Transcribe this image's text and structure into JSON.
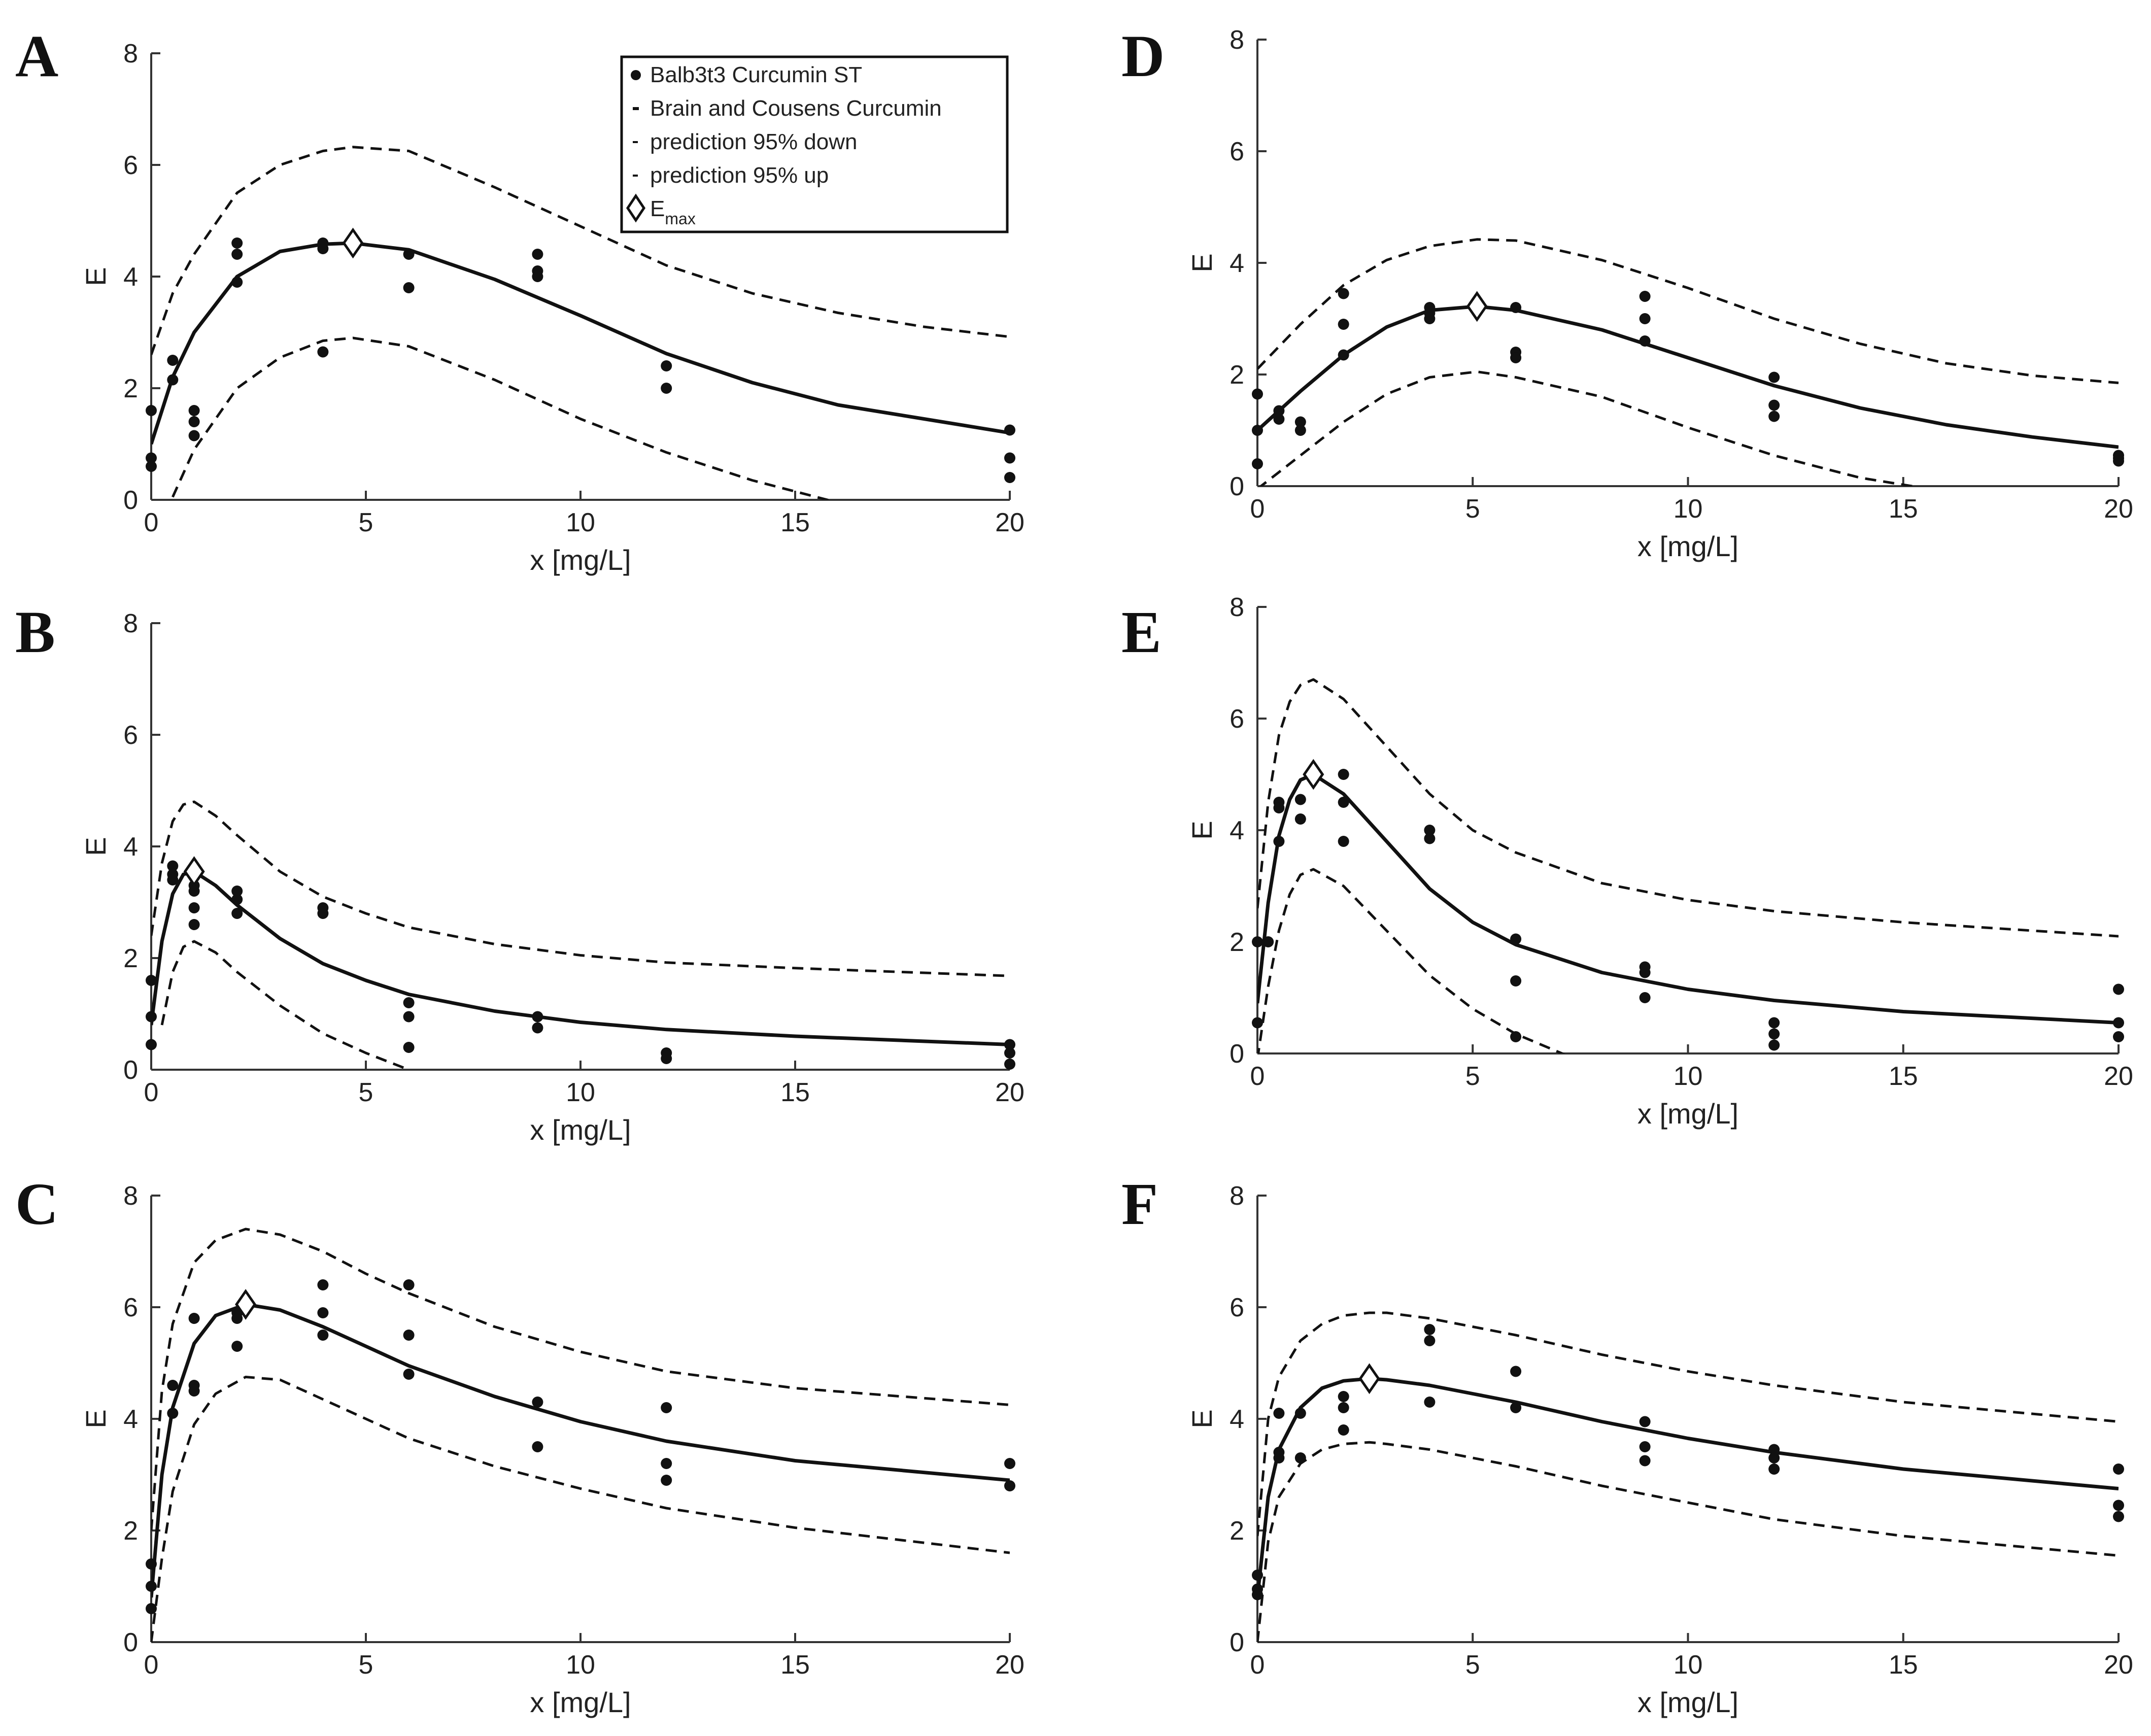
{
  "figure": {
    "legend": {
      "entries": [
        {
          "label": "Balb3t3 Curcumin ST",
          "marker": "dot"
        },
        {
          "label": "Brain and Cousens Curcumin",
          "marker": "solid-line"
        },
        {
          "label": "prediction 95% down",
          "marker": "dashed-line"
        },
        {
          "label": "prediction 95% up",
          "marker": "dashed-line"
        },
        {
          "label": "E",
          "sub": "max",
          "marker": "diamond"
        }
      ]
    },
    "colors": {
      "ink": "#111111",
      "axis": "#333333"
    }
  },
  "chart_data": [
    {
      "id": "A",
      "type": "line",
      "title": "A",
      "xlabel": "x [mg/L]",
      "ylabel": "E",
      "xlim": [
        0,
        20
      ],
      "ylim": [
        0,
        8
      ],
      "xticks": [
        0,
        5,
        10,
        15,
        20
      ],
      "yticks": [
        0,
        2,
        4,
        6,
        8
      ],
      "x": [
        0,
        0.5,
        1,
        2,
        3,
        4,
        4.7,
        6,
        8,
        10,
        12,
        14,
        16,
        18,
        20
      ],
      "series": [
        {
          "name": "Brain and Cousens Curcumin",
          "style": "solid",
          "values": [
            1.0,
            2.2,
            3.0,
            4.0,
            4.45,
            4.58,
            4.6,
            4.48,
            3.95,
            3.3,
            2.62,
            2.1,
            1.7,
            1.45,
            1.2
          ]
        },
        {
          "name": "prediction 95% up",
          "style": "dashed",
          "values": [
            2.6,
            3.7,
            4.4,
            5.5,
            6.0,
            6.25,
            6.32,
            6.25,
            5.6,
            4.9,
            4.2,
            3.7,
            3.35,
            3.1,
            2.92
          ]
        },
        {
          "name": "prediction 95% down",
          "style": "dashed",
          "values": [
            null,
            0.05,
            0.9,
            2.0,
            2.55,
            2.85,
            2.9,
            2.75,
            2.15,
            1.45,
            0.85,
            0.35,
            -0.05,
            null,
            null
          ]
        }
      ],
      "points": [
        [
          0,
          1.6
        ],
        [
          0,
          0.75
        ],
        [
          0,
          0.6
        ],
        [
          0.5,
          2.5
        ],
        [
          0.5,
          2.15
        ],
        [
          1,
          1.6
        ],
        [
          1,
          1.4
        ],
        [
          1,
          1.15
        ],
        [
          2,
          4.6
        ],
        [
          2,
          4.4
        ],
        [
          2,
          3.9
        ],
        [
          4,
          4.6
        ],
        [
          4,
          4.5
        ],
        [
          4,
          2.65
        ],
        [
          6,
          4.4
        ],
        [
          6,
          3.8
        ],
        [
          9,
          4.4
        ],
        [
          9,
          4.1
        ],
        [
          9,
          4.0
        ],
        [
          12,
          2.4
        ],
        [
          12,
          2.0
        ],
        [
          20,
          1.25
        ],
        [
          20,
          0.75
        ],
        [
          20,
          0.4
        ]
      ],
      "emax": [
        4.7,
        4.6
      ],
      "show_legend": true
    },
    {
      "id": "B",
      "type": "line",
      "title": "B",
      "xlabel": "x [mg/L]",
      "ylabel": "E",
      "xlim": [
        0,
        20
      ],
      "ylim": [
        0,
        8
      ],
      "xticks": [
        0,
        5,
        10,
        15,
        20
      ],
      "yticks": [
        0,
        2,
        4,
        6,
        8
      ],
      "x": [
        0,
        0.25,
        0.5,
        0.75,
        1,
        1.5,
        2,
        3,
        4,
        5,
        6,
        8,
        10,
        12,
        15,
        20
      ],
      "series": [
        {
          "name": "Brain and Cousens Curcumin",
          "style": "solid",
          "values": [
            0.8,
            2.3,
            3.15,
            3.5,
            3.55,
            3.3,
            2.95,
            2.35,
            1.9,
            1.6,
            1.35,
            1.05,
            0.85,
            0.72,
            0.6,
            0.45
          ]
        },
        {
          "name": "prediction 95% up",
          "style": "dashed",
          "values": [
            2.4,
            3.7,
            4.45,
            4.75,
            4.8,
            4.55,
            4.2,
            3.55,
            3.1,
            2.8,
            2.55,
            2.25,
            2.05,
            1.92,
            1.82,
            1.68
          ]
        },
        {
          "name": "prediction 95% down",
          "style": "dashed",
          "values": [
            null,
            0.8,
            1.75,
            2.2,
            2.3,
            2.1,
            1.75,
            1.15,
            0.65,
            0.3,
            0.0,
            null,
            null,
            null,
            null,
            null
          ]
        }
      ],
      "points": [
        [
          0,
          1.6
        ],
        [
          0,
          0.95
        ],
        [
          0,
          0.45
        ],
        [
          0.5,
          3.65
        ],
        [
          0.5,
          3.5
        ],
        [
          0.5,
          3.4
        ],
        [
          1,
          3.3
        ],
        [
          1,
          3.2
        ],
        [
          1,
          2.9
        ],
        [
          1,
          2.6
        ],
        [
          2,
          3.2
        ],
        [
          2,
          3.05
        ],
        [
          2,
          2.8
        ],
        [
          4,
          2.9
        ],
        [
          4,
          2.8
        ],
        [
          6,
          1.2
        ],
        [
          6,
          0.95
        ],
        [
          6,
          0.4
        ],
        [
          9,
          0.95
        ],
        [
          9,
          0.75
        ],
        [
          12,
          0.3
        ],
        [
          12,
          0.2
        ],
        [
          20,
          0.45
        ],
        [
          20,
          0.3
        ],
        [
          20,
          0.1
        ]
      ],
      "emax": [
        1.0,
        3.55
      ],
      "show_legend": false
    },
    {
      "id": "C",
      "type": "line",
      "title": "C",
      "xlabel": "x [mg/L]",
      "ylabel": "E",
      "xlim": [
        0,
        20
      ],
      "ylim": [
        0,
        8
      ],
      "xticks": [
        0,
        5,
        10,
        15,
        20
      ],
      "yticks": [
        0,
        2,
        4,
        6,
        8
      ],
      "x": [
        0,
        0.25,
        0.5,
        1,
        1.5,
        2.2,
        3,
        4,
        5,
        6,
        8,
        10,
        12,
        15,
        20
      ],
      "series": [
        {
          "name": "Brain and Cousens Curcumin",
          "style": "solid",
          "values": [
            0.8,
            3.0,
            4.2,
            5.35,
            5.85,
            6.05,
            5.95,
            5.65,
            5.3,
            4.95,
            4.4,
            3.95,
            3.6,
            3.25,
            2.9
          ]
        },
        {
          "name": "prediction 95% up",
          "style": "dashed",
          "values": [
            2.0,
            4.5,
            5.7,
            6.8,
            7.2,
            7.4,
            7.3,
            7.0,
            6.6,
            6.25,
            5.65,
            5.2,
            4.85,
            4.55,
            4.25
          ]
        },
        {
          "name": "prediction 95% down",
          "style": "dashed",
          "values": [
            0.0,
            1.5,
            2.7,
            3.9,
            4.45,
            4.75,
            4.7,
            4.35,
            4.0,
            3.65,
            3.15,
            2.75,
            2.4,
            2.05,
            1.6
          ]
        }
      ],
      "points": [
        [
          0,
          1.4
        ],
        [
          0,
          1.0
        ],
        [
          0,
          0.6
        ],
        [
          0.5,
          4.6
        ],
        [
          0.5,
          4.1
        ],
        [
          1,
          5.8
        ],
        [
          1,
          4.6
        ],
        [
          1,
          4.5
        ],
        [
          2,
          5.9
        ],
        [
          2,
          5.8
        ],
        [
          2,
          5.3
        ],
        [
          4,
          6.4
        ],
        [
          4,
          5.9
        ],
        [
          4,
          5.5
        ],
        [
          6,
          6.4
        ],
        [
          6,
          5.5
        ],
        [
          6,
          4.8
        ],
        [
          9,
          4.3
        ],
        [
          9,
          3.5
        ],
        [
          12,
          4.2
        ],
        [
          12,
          3.2
        ],
        [
          12,
          2.9
        ],
        [
          20,
          3.2
        ],
        [
          20,
          2.8
        ]
      ],
      "emax": [
        2.2,
        6.05
      ],
      "show_legend": false
    },
    {
      "id": "D",
      "type": "line",
      "title": "D",
      "xlabel": "x [mg/L]",
      "ylabel": "E",
      "xlim": [
        0,
        20
      ],
      "ylim": [
        0,
        8
      ],
      "xticks": [
        0,
        5,
        10,
        15,
        20
      ],
      "yticks": [
        0,
        2,
        4,
        6,
        8
      ],
      "x": [
        0,
        0.5,
        1,
        2,
        3,
        4,
        5.1,
        6,
        8,
        10,
        12,
        14,
        16,
        18,
        20
      ],
      "series": [
        {
          "name": "Brain and Cousens Curcumin",
          "style": "solid",
          "values": [
            1.0,
            1.35,
            1.7,
            2.35,
            2.85,
            3.15,
            3.22,
            3.15,
            2.8,
            2.3,
            1.8,
            1.4,
            1.1,
            0.88,
            0.7
          ]
        },
        {
          "name": "prediction 95% up",
          "style": "dashed",
          "values": [
            2.1,
            2.5,
            2.9,
            3.6,
            4.05,
            4.3,
            4.42,
            4.4,
            4.05,
            3.55,
            3.0,
            2.55,
            2.2,
            1.98,
            1.85
          ]
        },
        {
          "name": "prediction 95% down",
          "style": "dashed",
          "values": [
            -0.05,
            0.25,
            0.55,
            1.15,
            1.65,
            1.95,
            2.05,
            1.95,
            1.6,
            1.05,
            0.55,
            0.15,
            -0.1,
            null,
            null
          ]
        }
      ],
      "points": [
        [
          0,
          1.65
        ],
        [
          0,
          1.0
        ],
        [
          0,
          0.4
        ],
        [
          0.5,
          1.35
        ],
        [
          0.5,
          1.2
        ],
        [
          1,
          1.15
        ],
        [
          1,
          1.0
        ],
        [
          2,
          3.45
        ],
        [
          2,
          2.9
        ],
        [
          2,
          2.35
        ],
        [
          4,
          3.2
        ],
        [
          4,
          3.1
        ],
        [
          4,
          3.0
        ],
        [
          6,
          3.2
        ],
        [
          6,
          2.4
        ],
        [
          6,
          2.3
        ],
        [
          9,
          3.4
        ],
        [
          9,
          3.0
        ],
        [
          9,
          2.6
        ],
        [
          12,
          1.95
        ],
        [
          12,
          1.45
        ],
        [
          12,
          1.25
        ],
        [
          20,
          0.55
        ],
        [
          20,
          0.5
        ],
        [
          20,
          0.45
        ]
      ],
      "emax": [
        5.1,
        3.22
      ],
      "show_legend": false
    },
    {
      "id": "E",
      "type": "line",
      "title": "E",
      "xlabel": "x [mg/L]",
      "ylabel": "E",
      "xlim": [
        0,
        20
      ],
      "ylim": [
        0,
        8
      ],
      "xticks": [
        0,
        5,
        10,
        15,
        20
      ],
      "yticks": [
        0,
        2,
        4,
        6,
        8
      ],
      "x": [
        0,
        0.25,
        0.5,
        0.75,
        1,
        1.3,
        2,
        3,
        4,
        5,
        6,
        8,
        10,
        12,
        15,
        20
      ],
      "series": [
        {
          "name": "Brain and Cousens Curcumin",
          "style": "solid",
          "values": [
            0.9,
            2.7,
            3.9,
            4.55,
            4.9,
            5.0,
            4.65,
            3.8,
            2.95,
            2.35,
            1.95,
            1.45,
            1.15,
            0.95,
            0.75,
            0.55
          ]
        },
        {
          "name": "prediction 95% up",
          "style": "dashed",
          "values": [
            2.6,
            4.5,
            5.7,
            6.3,
            6.6,
            6.7,
            6.35,
            5.5,
            4.65,
            4.0,
            3.6,
            3.05,
            2.75,
            2.55,
            2.35,
            2.1
          ]
        },
        {
          "name": "prediction 95% down",
          "style": "dashed",
          "values": [
            -0.1,
            1.2,
            2.2,
            2.85,
            3.2,
            3.3,
            3.0,
            2.2,
            1.4,
            0.8,
            0.35,
            -0.3,
            null,
            null,
            null,
            null
          ]
        }
      ],
      "points": [
        [
          0,
          2.0
        ],
        [
          0,
          0.55
        ],
        [
          0.25,
          2.0
        ],
        [
          0.5,
          4.5
        ],
        [
          0.5,
          4.4
        ],
        [
          0.5,
          3.8
        ],
        [
          1,
          4.55
        ],
        [
          1,
          4.2
        ],
        [
          2,
          5.0
        ],
        [
          2,
          4.5
        ],
        [
          2,
          3.8
        ],
        [
          4,
          4.0
        ],
        [
          4,
          3.85
        ],
        [
          6,
          2.05
        ],
        [
          6,
          1.3
        ],
        [
          6,
          0.3
        ],
        [
          9,
          1.55
        ],
        [
          9,
          1.45
        ],
        [
          9,
          1.0
        ],
        [
          12,
          0.55
        ],
        [
          12,
          0.35
        ],
        [
          12,
          0.15
        ],
        [
          20,
          1.15
        ],
        [
          20,
          0.55
        ],
        [
          20,
          0.3
        ]
      ],
      "emax": [
        1.3,
        5.0
      ],
      "show_legend": false
    },
    {
      "id": "F",
      "type": "line",
      "title": "F",
      "xlabel": "x [mg/L]",
      "ylabel": "E",
      "xlim": [
        0,
        20
      ],
      "ylim": [
        0,
        8
      ],
      "xticks": [
        0,
        5,
        10,
        15,
        20
      ],
      "yticks": [
        0,
        2,
        4,
        6,
        8
      ],
      "x": [
        0,
        0.25,
        0.5,
        1,
        1.5,
        2,
        2.6,
        3,
        4,
        5,
        6,
        8,
        10,
        12,
        15,
        20
      ],
      "series": [
        {
          "name": "Brain and Cousens Curcumin",
          "style": "solid",
          "values": [
            0.8,
            2.6,
            3.45,
            4.2,
            4.55,
            4.68,
            4.72,
            4.7,
            4.6,
            4.45,
            4.3,
            3.95,
            3.65,
            3.4,
            3.1,
            2.75
          ]
        },
        {
          "name": "prediction 95% up",
          "style": "dashed",
          "values": [
            1.9,
            4.0,
            4.75,
            5.4,
            5.7,
            5.85,
            5.9,
            5.9,
            5.8,
            5.65,
            5.5,
            5.15,
            4.85,
            4.6,
            4.3,
            3.95
          ]
        },
        {
          "name": "prediction 95% down",
          "style": "dashed",
          "values": [
            0.0,
            1.8,
            2.6,
            3.2,
            3.45,
            3.55,
            3.58,
            3.55,
            3.45,
            3.3,
            3.15,
            2.8,
            2.5,
            2.2,
            1.9,
            1.55
          ]
        }
      ],
      "points": [
        [
          0,
          1.2
        ],
        [
          0,
          0.95
        ],
        [
          0,
          0.85
        ],
        [
          0.5,
          4.1
        ],
        [
          0.5,
          3.4
        ],
        [
          0.5,
          3.3
        ],
        [
          1,
          4.1
        ],
        [
          1,
          3.3
        ],
        [
          2,
          4.4
        ],
        [
          2,
          4.2
        ],
        [
          2,
          3.8
        ],
        [
          4,
          5.6
        ],
        [
          4,
          5.4
        ],
        [
          4,
          4.3
        ],
        [
          6,
          4.85
        ],
        [
          6,
          4.2
        ],
        [
          9,
          3.95
        ],
        [
          9,
          3.5
        ],
        [
          9,
          3.25
        ],
        [
          12,
          3.45
        ],
        [
          12,
          3.3
        ],
        [
          12,
          3.1
        ],
        [
          20,
          3.1
        ],
        [
          20,
          2.45
        ],
        [
          20,
          2.25
        ]
      ],
      "emax": [
        2.6,
        4.72
      ],
      "show_legend": false
    }
  ]
}
